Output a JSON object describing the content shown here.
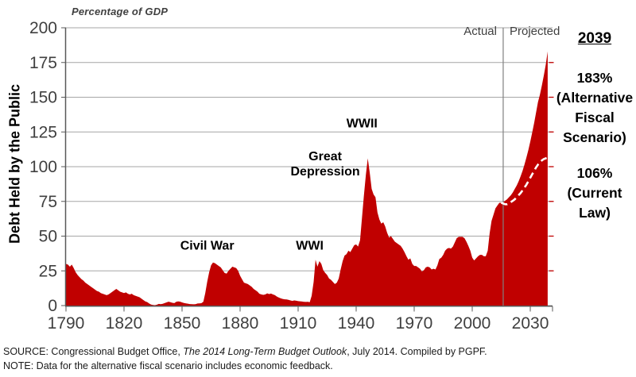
{
  "chart_data": {
    "type": "area",
    "title": "Percentage of GDP",
    "y_axis_title": "Debt Held by the Public",
    "x_ticks": [
      1790,
      1820,
      1850,
      1880,
      1910,
      1940,
      1970,
      2000,
      2030
    ],
    "y_ticks": [
      0,
      25,
      50,
      75,
      100,
      125,
      150,
      175,
      200
    ],
    "xlim": [
      1790,
      2041.5
    ],
    "ylim": [
      0,
      200
    ],
    "grid": "horizontal",
    "divider_year": 2016,
    "period_labels": {
      "actual": "Actual",
      "projected": "Projected"
    },
    "colors": {
      "area": "#C00000",
      "dashed_projection": "#FFFFFF",
      "gridline": "#A6A6A6",
      "axis": "#595959",
      "divider": "#808080",
      "tick_label": "#404040"
    },
    "annotations": [
      {
        "lines": [
          "Civil War"
        ],
        "year": 1863,
        "value": 43
      },
      {
        "lines": [
          "WWI"
        ],
        "year": 1916,
        "value": 43
      },
      {
        "lines": [
          "Great",
          "Depression"
        ],
        "year": 1924,
        "value": 102
      },
      {
        "lines": [
          "WWII"
        ],
        "year": 1943,
        "value": 131
      }
    ],
    "callouts": {
      "year": "2039",
      "afs_lines": [
        "183%",
        "(Alternative",
        "Fiscal",
        "Scenario)"
      ],
      "current_law_lines": [
        "106%",
        "(Current",
        "Law)"
      ]
    },
    "series": [
      {
        "name": "Debt held by the public - actual plus Alternative Fiscal Scenario",
        "style": "area",
        "color": "#C00000",
        "points": [
          [
            1790,
            30
          ],
          [
            1791,
            29.5
          ],
          [
            1792,
            28
          ],
          [
            1793,
            29.5
          ],
          [
            1794,
            27
          ],
          [
            1795,
            24
          ],
          [
            1796,
            22
          ],
          [
            1797,
            20.5
          ],
          [
            1798,
            19
          ],
          [
            1799,
            18
          ],
          [
            1800,
            16.5
          ],
          [
            1801,
            15.5
          ],
          [
            1802,
            14.5
          ],
          [
            1803,
            13.5
          ],
          [
            1804,
            12.5
          ],
          [
            1805,
            11.5
          ],
          [
            1806,
            10.5
          ],
          [
            1807,
            10
          ],
          [
            1808,
            9
          ],
          [
            1809,
            8.5
          ],
          [
            1810,
            8
          ],
          [
            1811,
            7.5
          ],
          [
            1812,
            8
          ],
          [
            1813,
            9
          ],
          [
            1814,
            10
          ],
          [
            1815,
            11
          ],
          [
            1816,
            12
          ],
          [
            1817,
            11
          ],
          [
            1818,
            10
          ],
          [
            1819,
            9.5
          ],
          [
            1820,
            9
          ],
          [
            1821,
            9.5
          ],
          [
            1822,
            8.5
          ],
          [
            1823,
            8
          ],
          [
            1824,
            8.5
          ],
          [
            1825,
            7.5
          ],
          [
            1826,
            7
          ],
          [
            1827,
            6.5
          ],
          [
            1828,
            6
          ],
          [
            1829,
            5
          ],
          [
            1830,
            4
          ],
          [
            1831,
            3
          ],
          [
            1832,
            2.5
          ],
          [
            1833,
            1.5
          ],
          [
            1834,
            0.7
          ],
          [
            1835,
            0.4
          ],
          [
            1836,
            0.3
          ],
          [
            1837,
            0.6
          ],
          [
            1838,
            1.2
          ],
          [
            1839,
            1
          ],
          [
            1840,
            1.3
          ],
          [
            1841,
            1.8
          ],
          [
            1842,
            2.3
          ],
          [
            1843,
            2.8
          ],
          [
            1844,
            2.4
          ],
          [
            1845,
            2
          ],
          [
            1846,
            1.8
          ],
          [
            1847,
            2.7
          ],
          [
            1848,
            3
          ],
          [
            1849,
            2.8
          ],
          [
            1850,
            2.3
          ],
          [
            1851,
            1.9
          ],
          [
            1852,
            1.6
          ],
          [
            1853,
            1.4
          ],
          [
            1854,
            1.1
          ],
          [
            1855,
            1
          ],
          [
            1856,
            0.9
          ],
          [
            1857,
            1
          ],
          [
            1858,
            1.5
          ],
          [
            1859,
            1.6
          ],
          [
            1860,
            1.7
          ],
          [
            1861,
            2.8
          ],
          [
            1862,
            9
          ],
          [
            1863,
            17
          ],
          [
            1864,
            24
          ],
          [
            1865,
            29
          ],
          [
            1866,
            31
          ],
          [
            1867,
            30.5
          ],
          [
            1868,
            29.5
          ],
          [
            1869,
            28.5
          ],
          [
            1870,
            27.5
          ],
          [
            1871,
            25.5
          ],
          [
            1872,
            23.5
          ],
          [
            1873,
            23
          ],
          [
            1874,
            25
          ],
          [
            1875,
            26.5
          ],
          [
            1876,
            28
          ],
          [
            1877,
            27.5
          ],
          [
            1878,
            27
          ],
          [
            1879,
            25
          ],
          [
            1880,
            21.5
          ],
          [
            1881,
            19
          ],
          [
            1882,
            16.5
          ],
          [
            1883,
            16
          ],
          [
            1884,
            15.5
          ],
          [
            1885,
            14.5
          ],
          [
            1886,
            13.5
          ],
          [
            1887,
            12
          ],
          [
            1888,
            11
          ],
          [
            1889,
            10
          ],
          [
            1890,
            8.5
          ],
          [
            1891,
            8
          ],
          [
            1892,
            7.7
          ],
          [
            1893,
            8
          ],
          [
            1894,
            8.8
          ],
          [
            1895,
            8.3
          ],
          [
            1896,
            8.6
          ],
          [
            1897,
            8
          ],
          [
            1898,
            7.5
          ],
          [
            1899,
            6.5
          ],
          [
            1900,
            5.8
          ],
          [
            1901,
            5.2
          ],
          [
            1902,
            4.8
          ],
          [
            1903,
            4.5
          ],
          [
            1904,
            4.4
          ],
          [
            1905,
            4.1
          ],
          [
            1906,
            3.7
          ],
          [
            1907,
            3.4
          ],
          [
            1908,
            3.7
          ],
          [
            1909,
            3.5
          ],
          [
            1910,
            3.2
          ],
          [
            1911,
            3.1
          ],
          [
            1912,
            2.9
          ],
          [
            1913,
            2.7
          ],
          [
            1914,
            2.6
          ],
          [
            1915,
            2.7
          ],
          [
            1916,
            2.4
          ],
          [
            1917,
            7
          ],
          [
            1918,
            17
          ],
          [
            1919,
            33
          ],
          [
            1920,
            28
          ],
          [
            1921,
            32
          ],
          [
            1922,
            30
          ],
          [
            1923,
            25.5
          ],
          [
            1924,
            23.5
          ],
          [
            1925,
            22
          ],
          [
            1926,
            19.5
          ],
          [
            1927,
            18.5
          ],
          [
            1928,
            17
          ],
          [
            1929,
            15.5
          ],
          [
            1930,
            16.5
          ],
          [
            1931,
            19.5
          ],
          [
            1932,
            26
          ],
          [
            1933,
            32
          ],
          [
            1934,
            36
          ],
          [
            1935,
            37
          ],
          [
            1936,
            39.5
          ],
          [
            1937,
            38.5
          ],
          [
            1938,
            41
          ],
          [
            1939,
            43.5
          ],
          [
            1940,
            44
          ],
          [
            1941,
            42.5
          ],
          [
            1942,
            47
          ],
          [
            1943,
            63
          ],
          [
            1944,
            79
          ],
          [
            1945,
            94
          ],
          [
            1946,
            106
          ],
          [
            1947,
            96
          ],
          [
            1948,
            84
          ],
          [
            1949,
            80
          ],
          [
            1950,
            78
          ],
          [
            1951,
            67
          ],
          [
            1952,
            62
          ],
          [
            1953,
            59
          ],
          [
            1954,
            60
          ],
          [
            1955,
            57
          ],
          [
            1956,
            52.5
          ],
          [
            1957,
            49
          ],
          [
            1958,
            50
          ],
          [
            1959,
            48
          ],
          [
            1960,
            46
          ],
          [
            1961,
            45
          ],
          [
            1962,
            44
          ],
          [
            1963,
            43
          ],
          [
            1964,
            41
          ],
          [
            1965,
            38.5
          ],
          [
            1966,
            35.5
          ],
          [
            1967,
            33
          ],
          [
            1968,
            34
          ],
          [
            1969,
            30
          ],
          [
            1970,
            28.5
          ],
          [
            1971,
            28.5
          ],
          [
            1972,
            27.5
          ],
          [
            1973,
            26.5
          ],
          [
            1974,
            24.5
          ],
          [
            1975,
            25.5
          ],
          [
            1976,
            27.5
          ],
          [
            1977,
            28
          ],
          [
            1978,
            27.5
          ],
          [
            1979,
            26
          ],
          [
            1980,
            26.5
          ],
          [
            1981,
            26
          ],
          [
            1982,
            29
          ],
          [
            1983,
            33.5
          ],
          [
            1984,
            34.5
          ],
          [
            1985,
            36.5
          ],
          [
            1986,
            39.5
          ],
          [
            1987,
            41
          ],
          [
            1988,
            41.5
          ],
          [
            1989,
            41
          ],
          [
            1990,
            42.5
          ],
          [
            1991,
            45.5
          ],
          [
            1992,
            48.5
          ],
          [
            1993,
            49.5
          ],
          [
            1994,
            49.5
          ],
          [
            1995,
            49.5
          ],
          [
            1996,
            48.5
          ],
          [
            1997,
            46
          ],
          [
            1998,
            43
          ],
          [
            1999,
            39.5
          ],
          [
            2000,
            34.5
          ],
          [
            2001,
            32.5
          ],
          [
            2002,
            34
          ],
          [
            2003,
            35.5
          ],
          [
            2004,
            36.5
          ],
          [
            2005,
            36.5
          ],
          [
            2006,
            35.5
          ],
          [
            2007,
            35.5
          ],
          [
            2008,
            39.5
          ],
          [
            2009,
            52
          ],
          [
            2010,
            61
          ],
          [
            2011,
            65.5
          ],
          [
            2012,
            70
          ],
          [
            2013,
            72
          ],
          [
            2014,
            74
          ],
          [
            2015,
            74
          ],
          [
            2016,
            74.5
          ],
          [
            2017,
            75.5
          ],
          [
            2018,
            76.5
          ],
          [
            2019,
            78
          ],
          [
            2020,
            79.5
          ],
          [
            2021,
            81.5
          ],
          [
            2022,
            84
          ],
          [
            2023,
            86.5
          ],
          [
            2024,
            89.5
          ],
          [
            2025,
            93
          ],
          [
            2026,
            97
          ],
          [
            2027,
            101.5
          ],
          [
            2028,
            106.5
          ],
          [
            2029,
            112
          ],
          [
            2030,
            118
          ],
          [
            2031,
            124.5
          ],
          [
            2032,
            131.5
          ],
          [
            2033,
            139
          ],
          [
            2034,
            146.5
          ],
          [
            2035,
            152
          ],
          [
            2036,
            158.5
          ],
          [
            2037,
            165.5
          ],
          [
            2038,
            173.5
          ],
          [
            2039,
            183
          ]
        ]
      },
      {
        "name": "Current Law projection",
        "style": "dashed-line",
        "color": "#FFFFFF",
        "points": [
          [
            2015,
            74
          ],
          [
            2016,
            73.5
          ],
          [
            2017,
            73
          ],
          [
            2018,
            73
          ],
          [
            2019,
            73.5
          ],
          [
            2020,
            74.5
          ],
          [
            2021,
            75.5
          ],
          [
            2022,
            76.5
          ],
          [
            2023,
            78
          ],
          [
            2024,
            79.5
          ],
          [
            2025,
            81
          ],
          [
            2026,
            83
          ],
          [
            2027,
            85
          ],
          [
            2028,
            87
          ],
          [
            2029,
            89.5
          ],
          [
            2030,
            92
          ],
          [
            2031,
            94.5
          ],
          [
            2032,
            97
          ],
          [
            2033,
            99.5
          ],
          [
            2034,
            101.5
          ],
          [
            2035,
            103
          ],
          [
            2036,
            104.5
          ],
          [
            2037,
            105.5
          ],
          [
            2038,
            106
          ],
          [
            2039,
            106.5
          ]
        ]
      }
    ]
  },
  "footnotes": {
    "source_prefix": "SOURCE:  Congressional Budget Office, ",
    "source_italic": "The 2014 Long-Term Budget Outlook",
    "source_suffix": ", July 2014. Compiled by PGPF.",
    "note": "NOTE:  Data for the alternative fiscal scenario includes economic feedback."
  }
}
